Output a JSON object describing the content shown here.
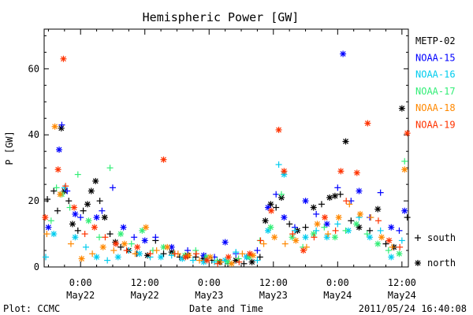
{
  "chart_data": {
    "type": "scatter",
    "title": "Hemispheric Power [GW]",
    "ylabel": "P [GW]",
    "xlabel": "Date and Time",
    "ylim": [
      0,
      72
    ],
    "yticks": [
      0,
      20,
      40,
      60
    ],
    "x_unit": "hours since 2011-05-22 00:00 UT",
    "xlim": [
      -6.8,
      61.2
    ],
    "xticks": [
      {
        "x": 0,
        "top": "0:00",
        "bottom": "May22"
      },
      {
        "x": 12,
        "top": "12:00",
        "bottom": "May22"
      },
      {
        "x": 24,
        "top": "0:00",
        "bottom": "May23"
      },
      {
        "x": 36,
        "top": "12:00",
        "bottom": "May23"
      },
      {
        "x": 48,
        "top": "0:00",
        "bottom": "May24"
      },
      {
        "x": 60,
        "top": "12:00",
        "bottom": "May24"
      }
    ],
    "grid": false,
    "legend_position": "right",
    "hemisphere_legend": [
      {
        "symbol": "+",
        "label": "south"
      },
      {
        "symbol": "*",
        "label": "north"
      }
    ],
    "series": [
      {
        "name": "METP-02",
        "color": "#000000",
        "points": [
          [
            -6.2,
            20.5,
            "+"
          ],
          [
            -5.0,
            23.0,
            "+"
          ],
          [
            -4.3,
            17.0,
            "+"
          ],
          [
            -3.6,
            42.0,
            "*"
          ],
          [
            -3.0,
            23.0,
            "*"
          ],
          [
            -2.2,
            20.0,
            "+"
          ],
          [
            -1.5,
            13.0,
            "*"
          ],
          [
            -0.5,
            11.0,
            "+"
          ],
          [
            0.5,
            17.0,
            "+"
          ],
          [
            1.3,
            19.0,
            "*"
          ],
          [
            2.0,
            23.0,
            "*"
          ],
          [
            2.8,
            26.0,
            "*"
          ],
          [
            3.6,
            20.0,
            "+"
          ],
          [
            4.5,
            15.0,
            "*"
          ],
          [
            5.5,
            10.0,
            "+"
          ],
          [
            6.5,
            7.5,
            "*"
          ],
          [
            7.5,
            6.0,
            "+"
          ],
          [
            9.0,
            5.0,
            "*"
          ],
          [
            10.5,
            4.0,
            "+"
          ],
          [
            12.5,
            3.5,
            "*"
          ],
          [
            14.0,
            8.0,
            "+"
          ],
          [
            15.5,
            4.0,
            "+"
          ],
          [
            17.0,
            4.5,
            "*"
          ],
          [
            18.5,
            3.0,
            "+"
          ],
          [
            20.0,
            3.5,
            "*"
          ],
          [
            21.5,
            3.0,
            "+"
          ],
          [
            23.0,
            2.5,
            "*"
          ],
          [
            24.5,
            2.0,
            "+"
          ],
          [
            26.0,
            1.5,
            "*"
          ],
          [
            27.5,
            1.0,
            "+"
          ],
          [
            29.0,
            2.0,
            "*"
          ],
          [
            30.5,
            1.0,
            "+"
          ],
          [
            32.0,
            1.5,
            "*"
          ],
          [
            33.5,
            3.0,
            "+"
          ],
          [
            34.5,
            14.0,
            "*"
          ],
          [
            35.5,
            19.0,
            "*"
          ],
          [
            36.5,
            18.0,
            "+"
          ],
          [
            37.5,
            21.0,
            "*"
          ],
          [
            39.0,
            13.0,
            "+"
          ],
          [
            40.5,
            11.0,
            "*"
          ],
          [
            42.0,
            12.0,
            "+"
          ],
          [
            43.5,
            18.0,
            "*"
          ],
          [
            45.0,
            19.0,
            "+"
          ],
          [
            46.5,
            21.0,
            "*"
          ],
          [
            47.5,
            21.5,
            "*"
          ],
          [
            48.5,
            22.0,
            "+"
          ],
          [
            49.5,
            38.0,
            "*"
          ],
          [
            50.5,
            14.0,
            "+"
          ],
          [
            52.0,
            12.0,
            "*"
          ],
          [
            54.0,
            11.0,
            "+"
          ],
          [
            55.5,
            17.5,
            "*"
          ],
          [
            57.0,
            7.0,
            "+"
          ],
          [
            58.5,
            6.0,
            "*"
          ],
          [
            60.0,
            48.0,
            "*"
          ],
          [
            61.0,
            15.0,
            "+"
          ]
        ]
      },
      {
        "name": "NOAA-15",
        "color": "#0000ff",
        "points": [
          [
            -6.0,
            12.0,
            "*"
          ],
          [
            -4.0,
            35.5,
            "*"
          ],
          [
            -3.5,
            43.0,
            "+"
          ],
          [
            -2.5,
            23.0,
            "+"
          ],
          [
            -1.0,
            16.0,
            "*"
          ],
          [
            0.0,
            15.0,
            "+"
          ],
          [
            3.0,
            15.0,
            "*"
          ],
          [
            4.0,
            17.0,
            "+"
          ],
          [
            6.0,
            24.0,
            "+"
          ],
          [
            8.0,
            12.0,
            "*"
          ],
          [
            10.0,
            9.0,
            "+"
          ],
          [
            12.0,
            8.0,
            "*"
          ],
          [
            14.0,
            9.0,
            "+"
          ],
          [
            17.0,
            6.0,
            "*"
          ],
          [
            20.0,
            5.0,
            "+"
          ],
          [
            23.0,
            3.5,
            "*"
          ],
          [
            25.0,
            3.0,
            "+"
          ],
          [
            27.0,
            7.5,
            "*"
          ],
          [
            29.0,
            4.0,
            "+"
          ],
          [
            31.0,
            3.0,
            "*"
          ],
          [
            33.0,
            5.0,
            "+"
          ],
          [
            35.0,
            18.0,
            "*"
          ],
          [
            36.5,
            22.0,
            "+"
          ],
          [
            38.0,
            15.0,
            "*"
          ],
          [
            40.0,
            12.0,
            "+"
          ],
          [
            42.0,
            20.0,
            "*"
          ],
          [
            44.0,
            16.0,
            "+"
          ],
          [
            46.0,
            13.0,
            "*"
          ],
          [
            48.0,
            24.0,
            "+"
          ],
          [
            49.0,
            64.5,
            "*"
          ],
          [
            50.5,
            20.0,
            "+"
          ],
          [
            52.0,
            23.0,
            "*"
          ],
          [
            54.0,
            15.0,
            "+"
          ],
          [
            56.0,
            22.5,
            "+"
          ],
          [
            58.0,
            12.0,
            "*"
          ],
          [
            59.5,
            11.0,
            "+"
          ],
          [
            60.5,
            17.0,
            "*"
          ]
        ]
      },
      {
        "name": "NOAA-16",
        "color": "#00ccee",
        "points": [
          [
            -6.5,
            3.0,
            "+"
          ],
          [
            -5.0,
            10.0,
            "*"
          ],
          [
            -3.0,
            24.0,
            "+"
          ],
          [
            -1.0,
            9.0,
            "*"
          ],
          [
            1.0,
            6.0,
            "+"
          ],
          [
            3.0,
            3.0,
            "*"
          ],
          [
            5.0,
            2.0,
            "+"
          ],
          [
            7.0,
            3.0,
            "*"
          ],
          [
            9.0,
            5.0,
            "+"
          ],
          [
            11.0,
            4.0,
            "*"
          ],
          [
            13.0,
            3.0,
            "+"
          ],
          [
            15.0,
            3.0,
            "*"
          ],
          [
            17.0,
            3.5,
            "+"
          ],
          [
            19.0,
            2.5,
            "*"
          ],
          [
            21.0,
            2.0,
            "+"
          ],
          [
            23.0,
            1.5,
            "*"
          ],
          [
            25.0,
            1.5,
            "+"
          ],
          [
            27.0,
            2.0,
            "*"
          ],
          [
            29.0,
            4.5,
            "+"
          ],
          [
            31.0,
            3.0,
            "*"
          ],
          [
            33.0,
            2.0,
            "+"
          ],
          [
            35.0,
            11.0,
            "*"
          ],
          [
            37.0,
            31.0,
            "+"
          ],
          [
            38.0,
            28.0,
            "*"
          ],
          [
            40.0,
            11.0,
            "+"
          ],
          [
            42.0,
            9.0,
            "*"
          ],
          [
            44.0,
            11.0,
            "+"
          ],
          [
            46.0,
            9.0,
            "*"
          ],
          [
            48.0,
            13.0,
            "+"
          ],
          [
            50.0,
            11.0,
            "*"
          ],
          [
            52.0,
            15.0,
            "+"
          ],
          [
            54.0,
            9.0,
            "*"
          ],
          [
            56.0,
            11.0,
            "+"
          ],
          [
            58.0,
            3.0,
            "*"
          ],
          [
            60.0,
            8.0,
            "+"
          ]
        ]
      },
      {
        "name": "NOAA-17",
        "color": "#33ee77",
        "points": [
          [
            -5.5,
            14.0,
            "+"
          ],
          [
            -4.5,
            24.0,
            "+"
          ],
          [
            -3.5,
            22.0,
            "*"
          ],
          [
            -2.0,
            18.0,
            "+"
          ],
          [
            -0.5,
            28.0,
            "+"
          ],
          [
            1.5,
            14.0,
            "*"
          ],
          [
            3.5,
            9.0,
            "+"
          ],
          [
            5.5,
            30.0,
            "+"
          ],
          [
            7.5,
            10.0,
            "*"
          ],
          [
            9.5,
            7.0,
            "+"
          ],
          [
            11.5,
            11.0,
            "*"
          ],
          [
            13.5,
            5.0,
            "+"
          ],
          [
            15.5,
            6.0,
            "*"
          ],
          [
            17.5,
            4.0,
            "+"
          ],
          [
            19.5,
            3.5,
            "*"
          ],
          [
            21.5,
            5.0,
            "+"
          ],
          [
            23.5,
            3.0,
            "*"
          ],
          [
            25.5,
            2.0,
            "+"
          ],
          [
            27.5,
            1.5,
            "*"
          ],
          [
            29.5,
            2.5,
            "+"
          ],
          [
            31.5,
            3.0,
            "*"
          ],
          [
            33.5,
            8.0,
            "+"
          ],
          [
            35.5,
            12.0,
            "*"
          ],
          [
            37.5,
            22.0,
            "+"
          ],
          [
            39.5,
            9.0,
            "*"
          ],
          [
            41.5,
            6.0,
            "+"
          ],
          [
            43.5,
            10.0,
            "*"
          ],
          [
            45.5,
            12.0,
            "+"
          ],
          [
            47.5,
            9.0,
            "*"
          ],
          [
            49.5,
            11.0,
            "+"
          ],
          [
            51.5,
            13.0,
            "*"
          ],
          [
            53.5,
            10.0,
            "+"
          ],
          [
            55.5,
            7.0,
            "*"
          ],
          [
            57.5,
            5.0,
            "+"
          ],
          [
            59.5,
            4.0,
            "*"
          ],
          [
            60.5,
            32.0,
            "+"
          ]
        ]
      },
      {
        "name": "NOAA-18",
        "color": "#ff8800",
        "points": [
          [
            -6.3,
            10.0,
            "+"
          ],
          [
            -4.8,
            42.5,
            "*"
          ],
          [
            -3.8,
            22.0,
            "*"
          ],
          [
            -1.8,
            7.0,
            "+"
          ],
          [
            0.2,
            2.5,
            "*"
          ],
          [
            2.2,
            4.0,
            "+"
          ],
          [
            4.2,
            6.0,
            "*"
          ],
          [
            6.2,
            5.0,
            "+"
          ],
          [
            8.2,
            7.0,
            "*"
          ],
          [
            10.2,
            4.0,
            "+"
          ],
          [
            12.2,
            12.0,
            "*"
          ],
          [
            14.2,
            5.0,
            "+"
          ],
          [
            16.2,
            6.0,
            "*"
          ],
          [
            18.2,
            4.0,
            "+"
          ],
          [
            20.2,
            3.5,
            "*"
          ],
          [
            22.2,
            2.0,
            "+"
          ],
          [
            24.2,
            3.0,
            "*"
          ],
          [
            26.2,
            1.5,
            "+"
          ],
          [
            28.2,
            1.0,
            "*"
          ],
          [
            30.2,
            4.0,
            "+"
          ],
          [
            32.2,
            3.5,
            "*"
          ],
          [
            34.2,
            7.0,
            "+"
          ],
          [
            36.2,
            9.0,
            "*"
          ],
          [
            38.2,
            7.0,
            "+"
          ],
          [
            40.2,
            8.0,
            "*"
          ],
          [
            42.2,
            6.0,
            "+"
          ],
          [
            44.2,
            13.0,
            "*"
          ],
          [
            46.2,
            10.0,
            "+"
          ],
          [
            48.2,
            15.0,
            "*"
          ],
          [
            50.2,
            19.0,
            "+"
          ],
          [
            52.2,
            16.0,
            "*"
          ],
          [
            54.2,
            15.0,
            "+"
          ],
          [
            56.2,
            9.0,
            "*"
          ],
          [
            58.2,
            6.0,
            "+"
          ],
          [
            60.5,
            29.5,
            "*"
          ]
        ]
      },
      {
        "name": "NOAA-19",
        "color": "#ff3300",
        "points": [
          [
            -6.6,
            15.0,
            "*"
          ],
          [
            -4.2,
            29.5,
            "*"
          ],
          [
            -3.2,
            63.0,
            "*"
          ],
          [
            -2.8,
            24.5,
            "+"
          ],
          [
            -1.2,
            18.0,
            "*"
          ],
          [
            0.8,
            10.0,
            "+"
          ],
          [
            2.6,
            12.0,
            "*"
          ],
          [
            4.6,
            9.0,
            "+"
          ],
          [
            6.6,
            7.0,
            "*"
          ],
          [
            8.6,
            5.0,
            "+"
          ],
          [
            10.6,
            6.0,
            "*"
          ],
          [
            13.0,
            4.0,
            "+"
          ],
          [
            15.5,
            32.5,
            "*"
          ],
          [
            17.6,
            4.0,
            "+"
          ],
          [
            19.6,
            3.0,
            "*"
          ],
          [
            21.6,
            4.0,
            "+"
          ],
          [
            23.6,
            2.0,
            "*"
          ],
          [
            25.6,
            1.0,
            "+"
          ],
          [
            27.6,
            3.0,
            "*"
          ],
          [
            29.6,
            1.5,
            "+"
          ],
          [
            31.6,
            4.0,
            "*"
          ],
          [
            33.6,
            8.0,
            "+"
          ],
          [
            35.6,
            17.0,
            "*"
          ],
          [
            37.0,
            41.5,
            "*"
          ],
          [
            38.0,
            29.0,
            "*"
          ],
          [
            39.6,
            10.0,
            "+"
          ],
          [
            41.6,
            5.0,
            "*"
          ],
          [
            43.6,
            9.0,
            "+"
          ],
          [
            45.6,
            15.0,
            "*"
          ],
          [
            47.6,
            11.0,
            "+"
          ],
          [
            48.6,
            29.0,
            "*"
          ],
          [
            49.6,
            20.0,
            "+"
          ],
          [
            51.6,
            28.5,
            "*"
          ],
          [
            53.6,
            43.5,
            "*"
          ],
          [
            55.6,
            14.0,
            "+"
          ],
          [
            57.6,
            8.0,
            "*"
          ],
          [
            59.6,
            6.0,
            "+"
          ],
          [
            61.0,
            40.5,
            "*"
          ]
        ]
      }
    ]
  },
  "footer": {
    "plot_credit": "Plot: CCMC",
    "timestamp": "2011/05/24 16:40:08"
  }
}
